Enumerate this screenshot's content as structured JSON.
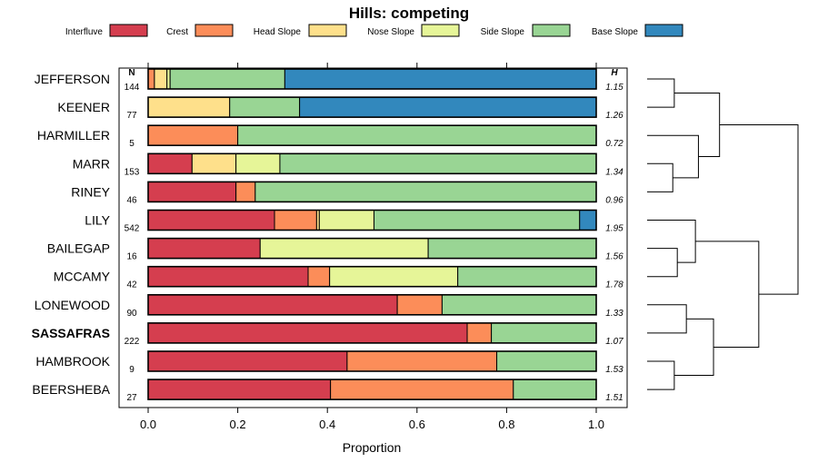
{
  "chart_data": {
    "type": "bar",
    "orientation": "horizontal",
    "stacked": true,
    "title": "Hills: competing",
    "xlabel": "Proportion",
    "xlim": [
      0,
      1
    ],
    "xticks": [
      "0.0",
      "0.2",
      "0.4",
      "0.6",
      "0.8",
      "1.0"
    ],
    "n_header": "N",
    "h_header": "H",
    "legend_position": "top",
    "series": [
      {
        "name": "Interfluve",
        "color": "#D53E4F"
      },
      {
        "name": "Crest",
        "color": "#FC8D59"
      },
      {
        "name": "Head Slope",
        "color": "#FEE08B"
      },
      {
        "name": "Nose Slope",
        "color": "#E6F598"
      },
      {
        "name": "Side Slope",
        "color": "#99D594"
      },
      {
        "name": "Base Slope",
        "color": "#3288BD"
      }
    ],
    "rows": [
      {
        "label": "JEFFERSON",
        "n": "144",
        "h": "1.15",
        "bold": false,
        "values": [
          0.0,
          0.014,
          0.028,
          0.007,
          0.256,
          0.695
        ]
      },
      {
        "label": "KEENER",
        "n": "77",
        "h": "1.26",
        "bold": false,
        "values": [
          0.0,
          0.0,
          0.182,
          0.0,
          0.156,
          0.662
        ]
      },
      {
        "label": "HARMILLER",
        "n": "5",
        "h": "0.72",
        "bold": false,
        "values": [
          0.0,
          0.2,
          0.0,
          0.0,
          0.8,
          0.0
        ]
      },
      {
        "label": "MARR",
        "n": "153",
        "h": "1.34",
        "bold": false,
        "values": [
          0.098,
          0.0,
          0.098,
          0.098,
          0.706,
          0.0
        ]
      },
      {
        "label": "RINEY",
        "n": "46",
        "h": "0.96",
        "bold": false,
        "values": [
          0.196,
          0.043,
          0.0,
          0.0,
          0.761,
          0.0
        ]
      },
      {
        "label": "LILY",
        "n": "542",
        "h": "1.95",
        "bold": false,
        "values": [
          0.282,
          0.094,
          0.006,
          0.122,
          0.459,
          0.037
        ]
      },
      {
        "label": "BAILEGAP",
        "n": "16",
        "h": "1.56",
        "bold": false,
        "values": [
          0.25,
          0.0,
          0.0,
          0.375,
          0.375,
          0.0
        ]
      },
      {
        "label": "MCCAMY",
        "n": "42",
        "h": "1.78",
        "bold": false,
        "values": [
          0.357,
          0.048,
          0.0,
          0.286,
          0.309,
          0.0
        ]
      },
      {
        "label": "LONEWOOD",
        "n": "90",
        "h": "1.33",
        "bold": false,
        "values": [
          0.556,
          0.1,
          0.0,
          0.0,
          0.344,
          0.0
        ]
      },
      {
        "label": "SASSAFRAS",
        "n": "222",
        "h": "1.07",
        "bold": true,
        "values": [
          0.712,
          0.054,
          0.0,
          0.0,
          0.234,
          0.0
        ]
      },
      {
        "label": "HAMBROOK",
        "n": "9",
        "h": "1.53",
        "bold": false,
        "values": [
          0.444,
          0.334,
          0.0,
          0.0,
          0.222,
          0.0
        ]
      },
      {
        "label": "BEERSHEBA",
        "n": "27",
        "h": "1.51",
        "bold": false,
        "values": [
          0.407,
          0.408,
          0.0,
          0.0,
          0.185,
          0.0
        ]
      }
    ],
    "dendrogram": {
      "linkage": [
        [
          0,
          1,
          0.18
        ],
        [
          3,
          4,
          0.17
        ],
        [
          2,
          13,
          0.34
        ],
        [
          6,
          7,
          0.2
        ],
        [
          5,
          15,
          0.32
        ],
        [
          10,
          11,
          0.18
        ],
        [
          8,
          9,
          0.26
        ],
        [
          17,
          18,
          0.44
        ],
        [
          16,
          19,
          0.74
        ],
        [
          12,
          14,
          0.48
        ],
        [
          20,
          21,
          1.0
        ]
      ]
    }
  }
}
